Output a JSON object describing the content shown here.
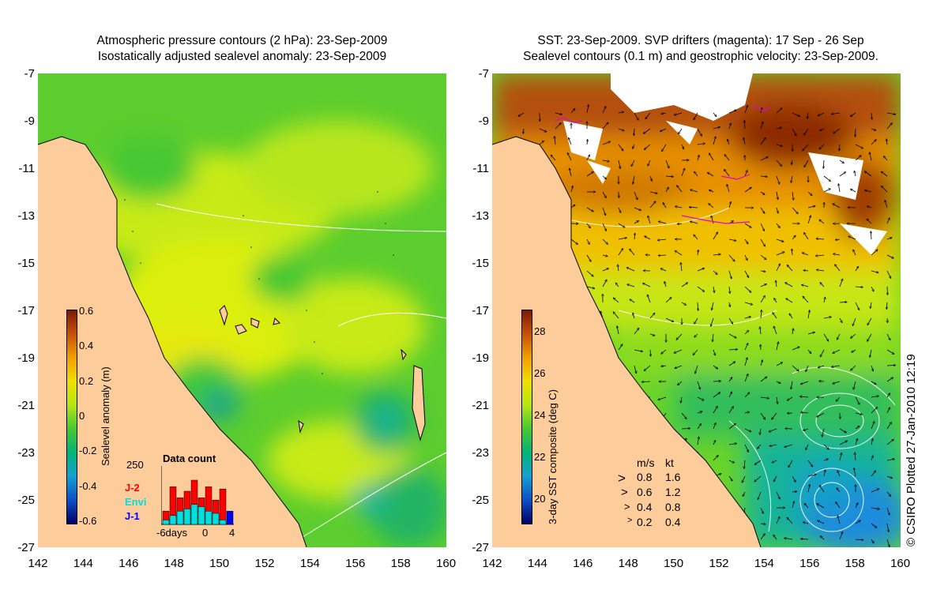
{
  "left_panel": {
    "title_line1": "Atmospheric pressure contours (2 hPa): 23-Sep-2009",
    "title_line2": "Isostatically adjusted sealevel anomaly: 23-Sep-2009",
    "colorbar": {
      "label": "Sealevel anomaly (m)",
      "ticks": [
        "0.6",
        "0.4",
        "0.2",
        "0",
        "-0.2",
        "-0.4",
        "-0.6"
      ],
      "colors": [
        "#7a1a00",
        "#c8500a",
        "#f0a000",
        "#f0e000",
        "#b4e614",
        "#46c832",
        "#00b478",
        "#14a0d2",
        "#0a50c8",
        "#000064"
      ]
    },
    "data_count": {
      "title": "Data count",
      "max_label": "250",
      "x_start_label": "-6days",
      "x_mid_label": "0",
      "x_end_label": "4",
      "missions": [
        {
          "name": "J-2",
          "color": "#ff0000"
        },
        {
          "name": "Envi",
          "color": "#00e0e0"
        },
        {
          "name": "J-1",
          "color": "#0000ff"
        }
      ],
      "bars": [
        {
          "day": -6,
          "j2": 60,
          "envi": 20,
          "j1": 0
        },
        {
          "day": -5,
          "j2": 170,
          "envi": 40,
          "j1": 0
        },
        {
          "day": -4,
          "j2": 120,
          "envi": 60,
          "j1": 0
        },
        {
          "day": -3,
          "j2": 150,
          "envi": 70,
          "j1": 0
        },
        {
          "day": -2,
          "j2": 200,
          "envi": 90,
          "j1": 0
        },
        {
          "day": -1,
          "j2": 120,
          "envi": 80,
          "j1": 0
        },
        {
          "day": 0,
          "j2": 170,
          "envi": 60,
          "j1": 0
        },
        {
          "day": 1,
          "j2": 110,
          "envi": 50,
          "j1": 0
        },
        {
          "day": 2,
          "j2": 160,
          "envi": 20,
          "j1": 0
        },
        {
          "day": 3,
          "j2": 0,
          "envi": 0,
          "j1": 60
        }
      ]
    }
  },
  "right_panel": {
    "title_line1": "SST: 23-Sep-2009. SVP drifters (magenta): 17 Sep - 26 Sep",
    "title_line2": "Sealevel contours (0.1 m) and geostrophic velocity: 23-Sep-2009.",
    "colorbar": {
      "label": "3-day SST composite (deg C)",
      "ticks": [
        "28",
        "26",
        "24",
        "22",
        "20"
      ],
      "colors": [
        "#7a1a00",
        "#c8500a",
        "#f0a000",
        "#f0e000",
        "#b4e614",
        "#46c832",
        "#00b478",
        "#14a0d2",
        "#0a50c8",
        "#000064"
      ]
    },
    "velocity_key": {
      "header_ms": "m/s",
      "header_kt": "kt",
      "rows": [
        {
          "ms": "0.8",
          "kt": "1.6"
        },
        {
          "ms": "0.6",
          "kt": "1.2"
        },
        {
          "ms": "0.4",
          "kt": "0.8"
        },
        {
          "ms": "0.2",
          "kt": "0.4"
        }
      ]
    },
    "credit": "© CSIRO Plotted 27-Jan-2010 12:19"
  },
  "axes": {
    "lat_ticks": [
      "-7",
      "-9",
      "-11",
      "-13",
      "-15",
      "-17",
      "-19",
      "-21",
      "-23",
      "-25",
      "-27"
    ],
    "lon_ticks": [
      "142",
      "144",
      "146",
      "148",
      "150",
      "152",
      "154",
      "156",
      "158",
      "160"
    ]
  },
  "colors": {
    "land": "#fccc9a",
    "coast": "#000000",
    "contour": "#ffffff",
    "drifter": "#e000e0",
    "cloud": "#ffffff"
  }
}
